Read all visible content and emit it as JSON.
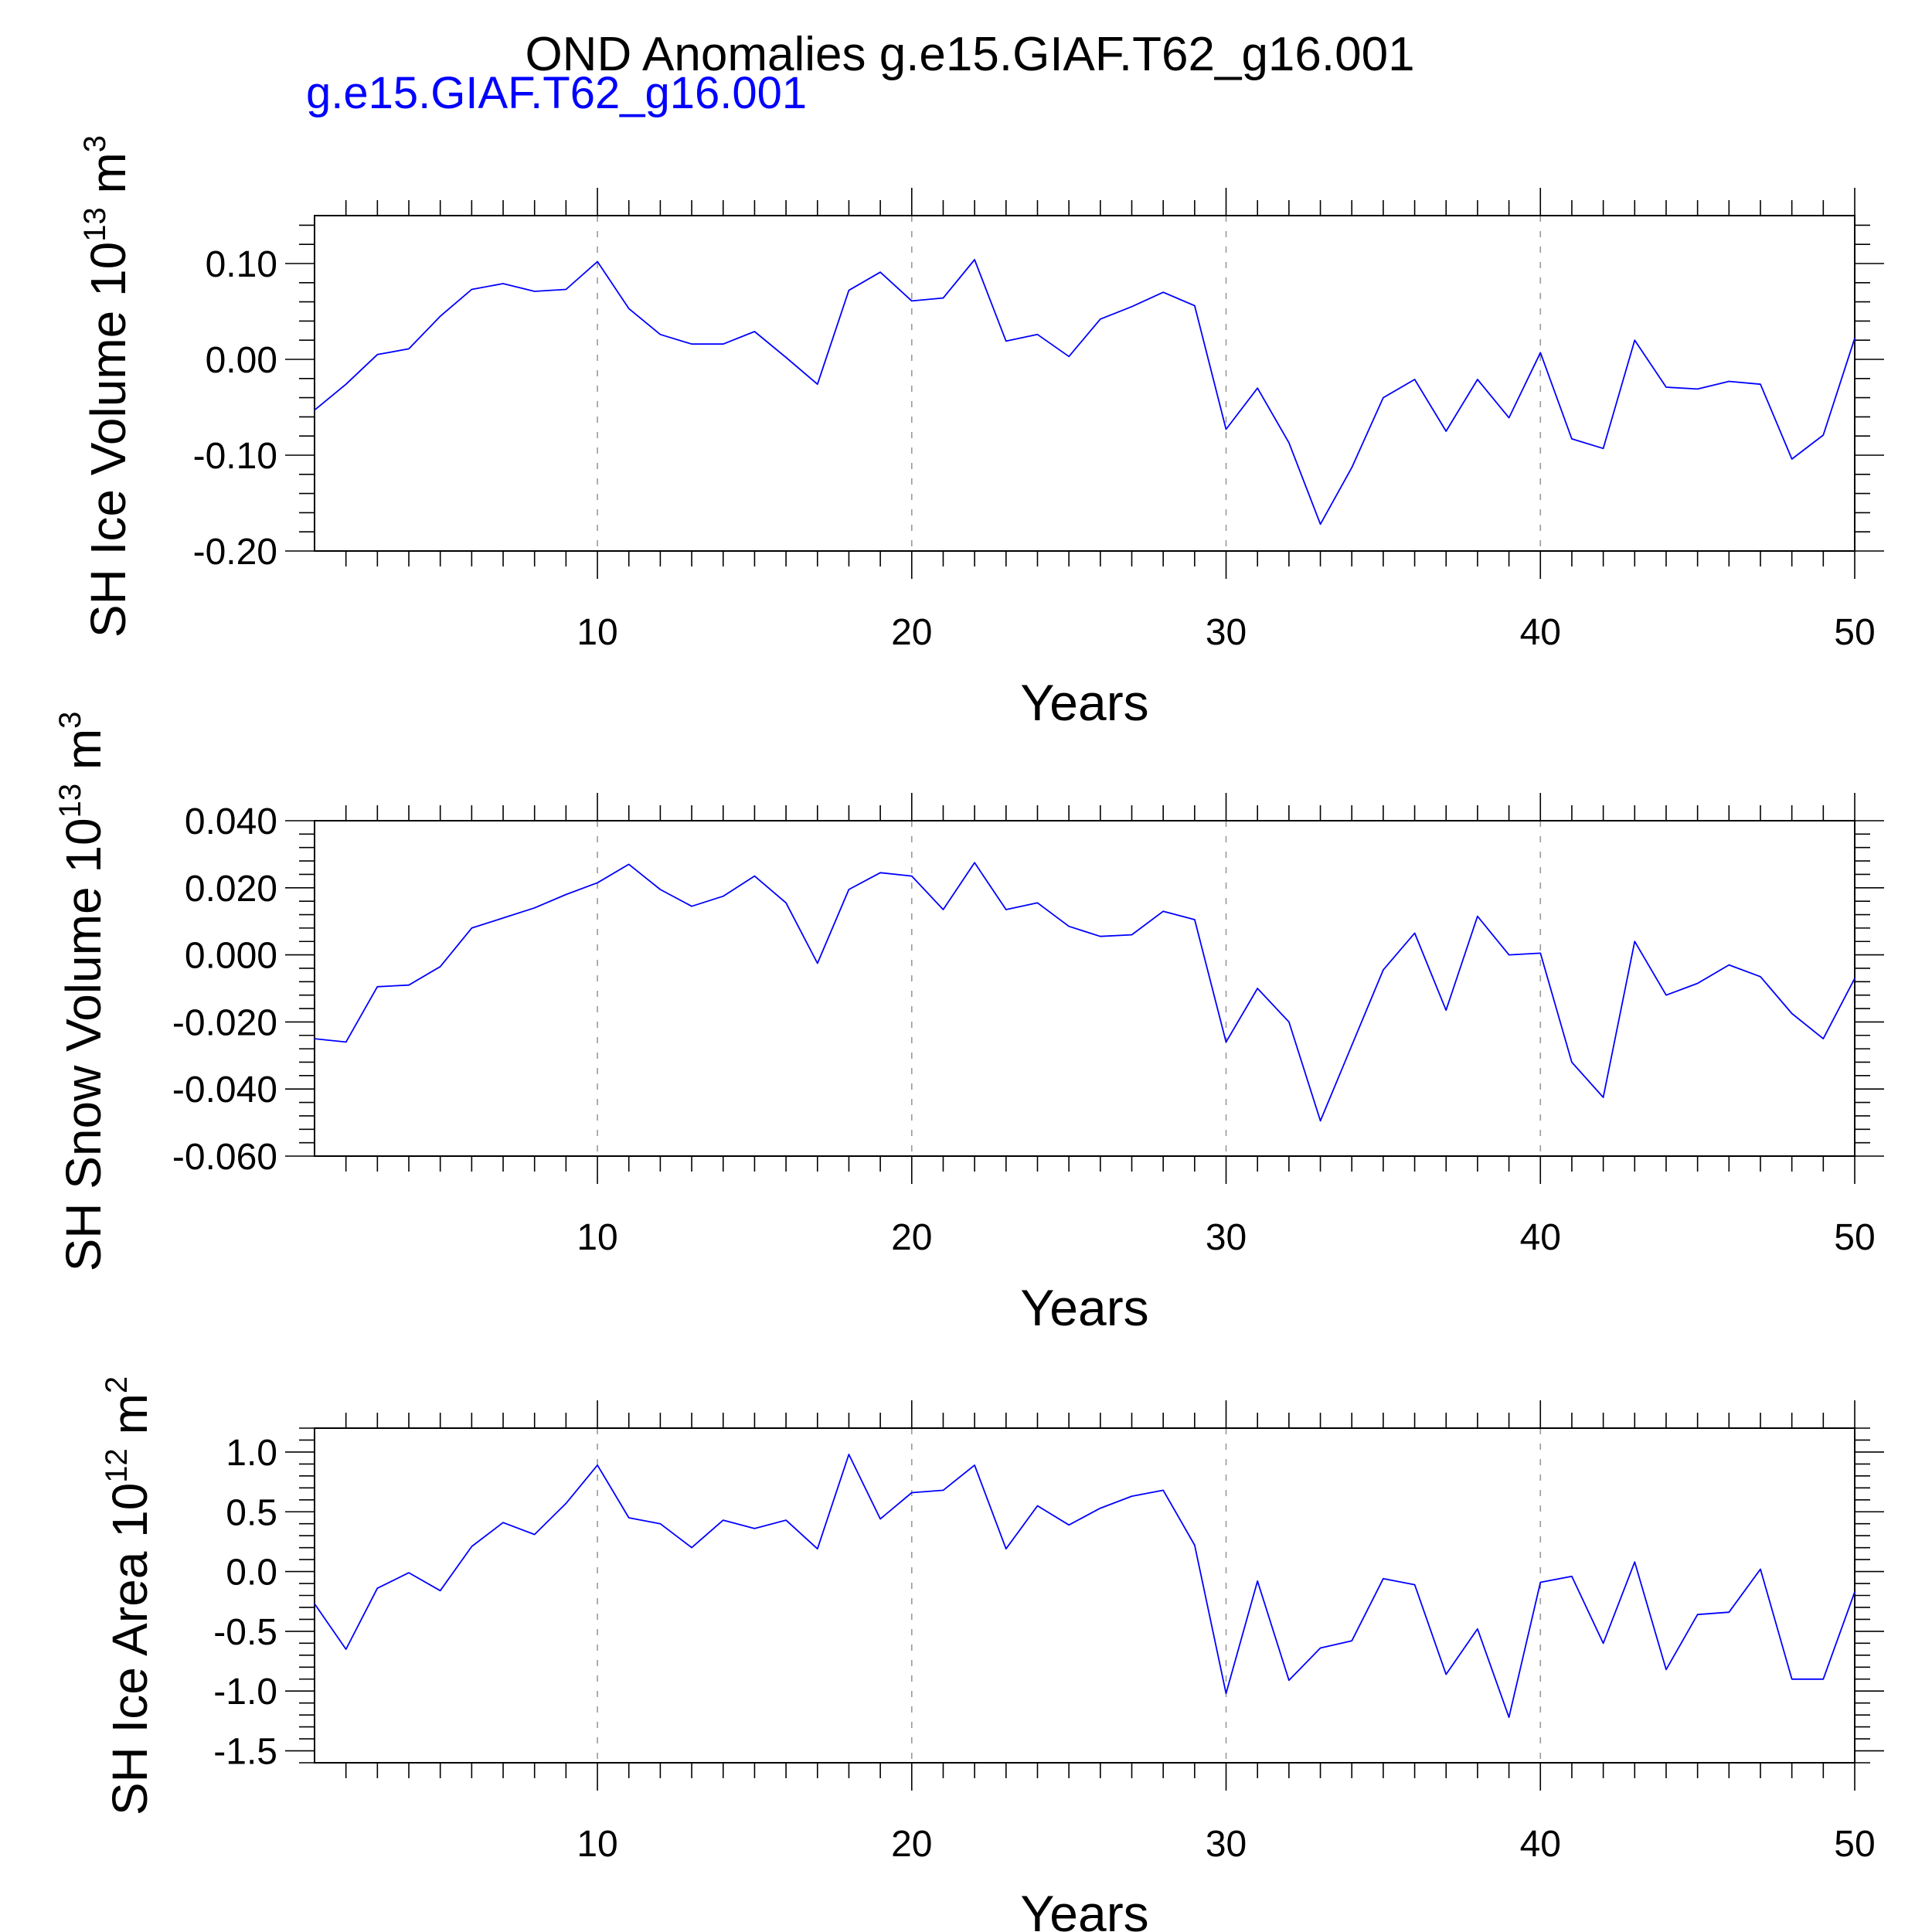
{
  "title": "OND Anomalies g.e15.GIAF.T62_g16.001",
  "case_label": "g.e15.GIAF.T62_g16.001",
  "line_color": "#0000FF",
  "chart_data": [
    {
      "type": "line",
      "ylabel_main": "SH Ice Volume 10",
      "ylabel_exp1": "13",
      "ylabel_unit": " m",
      "ylabel_exp2": "3",
      "xlabel": "Years",
      "xlim": [
        1,
        50
      ],
      "ylim": [
        -0.2,
        0.15
      ],
      "xticks": [
        "10",
        "20",
        "30",
        "40",
        "50"
      ],
      "yticks": [
        "0.10",
        "0.00",
        "-0.10",
        "-0.20"
      ],
      "grid": "vertical dashed at major x ticks",
      "series": [
        {
          "values": [
            -0.053,
            -0.026,
            0.005,
            0.011,
            0.045,
            0.073,
            0.079,
            0.071,
            0.073,
            0.102,
            0.053,
            0.026,
            0.016,
            0.016,
            0.029,
            0.002,
            -0.026,
            0.072,
            0.091,
            0.061,
            0.064,
            0.104,
            0.019,
            0.026,
            0.003,
            0.042,
            0.055,
            0.07,
            0.056,
            -0.073,
            -0.03,
            -0.087,
            -0.172,
            -0.113,
            -0.04,
            -0.021,
            -0.075,
            -0.021,
            -0.061,
            0.007,
            -0.083,
            -0.093,
            0.02,
            -0.029,
            -0.031,
            -0.023,
            -0.026,
            -0.104,
            -0.079,
            0.022
          ]
        }
      ]
    },
    {
      "type": "line",
      "ylabel_main": "SH Snow Volume 10",
      "ylabel_exp1": "13",
      "ylabel_unit": " m",
      "ylabel_exp2": "3",
      "xlabel": "Years",
      "xlim": [
        1,
        50
      ],
      "ylim": [
        -0.06,
        0.04
      ],
      "xticks": [
        "10",
        "20",
        "30",
        "40",
        "50"
      ],
      "yticks": [
        "0.040",
        "0.020",
        "0.000",
        "-0.020",
        "-0.040",
        "-0.060"
      ],
      "grid": "vertical dashed at major x ticks",
      "series": [
        {
          "values": [
            -0.025,
            -0.026,
            -0.0095,
            -0.009,
            -0.0035,
            0.008,
            0.011,
            0.014,
            0.018,
            0.0215,
            0.027,
            0.0195,
            0.0145,
            0.0175,
            0.0235,
            0.0155,
            -0.0025,
            0.0195,
            0.0245,
            0.0235,
            0.0135,
            0.0275,
            0.0135,
            0.0155,
            0.0085,
            0.0055,
            0.006,
            0.013,
            0.0105,
            -0.026,
            -0.01,
            -0.02,
            -0.0495,
            -0.027,
            -0.0045,
            0.0065,
            -0.0165,
            0.0115,
            0.0,
            0.0005,
            -0.032,
            -0.0425,
            0.004,
            -0.012,
            -0.0085,
            -0.003,
            -0.0065,
            -0.0175,
            -0.025,
            -0.007
          ]
        }
      ]
    },
    {
      "type": "line",
      "ylabel_main": "SH Ice Area 10",
      "ylabel_exp1": "12",
      "ylabel_unit": " m",
      "ylabel_exp2": "2",
      "xlabel": "Years",
      "xlim": [
        1,
        50
      ],
      "ylim": [
        -1.6,
        1.2
      ],
      "xticks": [
        "10",
        "20",
        "30",
        "40",
        "50"
      ],
      "yticks": [
        "1.0",
        "0.5",
        "0.0",
        "-0.5",
        "-1.0",
        "-1.5"
      ],
      "grid": "vertical dashed at major x ticks",
      "series": [
        {
          "values": [
            -0.27,
            -0.65,
            -0.14,
            -0.01,
            -0.16,
            0.21,
            0.41,
            0.31,
            0.57,
            0.89,
            0.45,
            0.4,
            0.2,
            0.43,
            0.36,
            0.43,
            0.19,
            0.98,
            0.44,
            0.66,
            0.68,
            0.89,
            0.19,
            0.55,
            0.39,
            0.53,
            0.63,
            0.68,
            0.22,
            -1.02,
            -0.08,
            -0.91,
            -0.64,
            -0.58,
            -0.06,
            -0.11,
            -0.86,
            -0.48,
            -1.22,
            -0.09,
            -0.04,
            -0.6,
            0.08,
            -0.82,
            -0.36,
            -0.34,
            0.02,
            -0.9,
            -0.9,
            -0.17
          ]
        }
      ]
    }
  ]
}
